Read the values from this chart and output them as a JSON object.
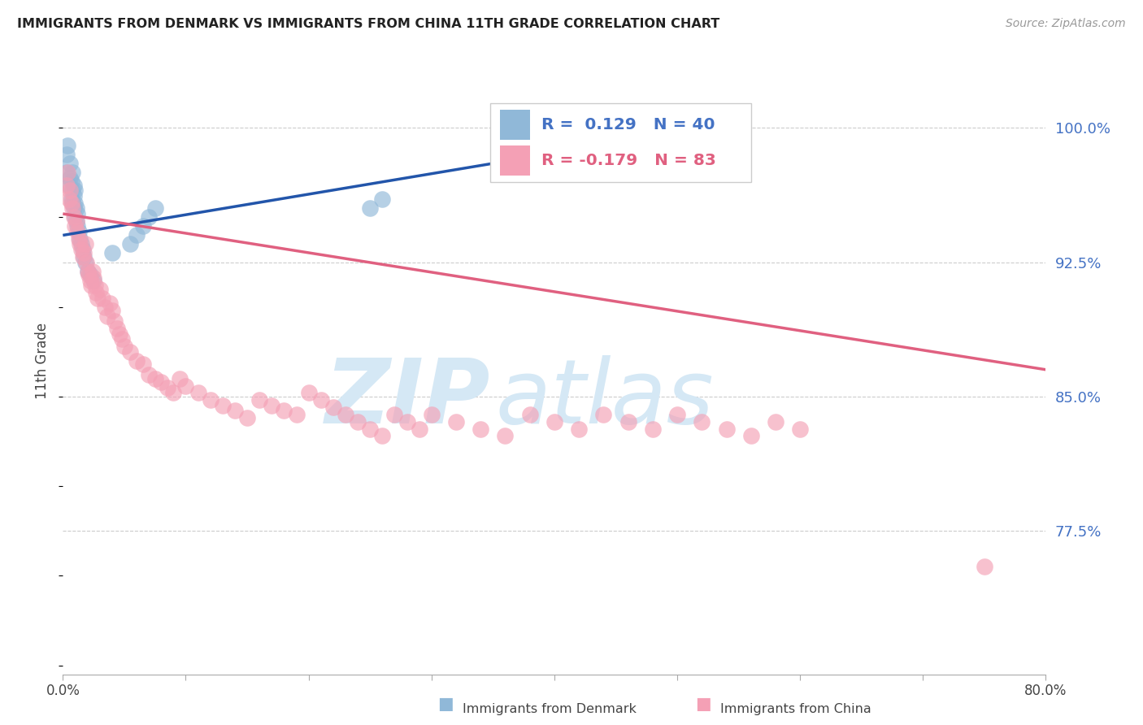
{
  "title": "IMMIGRANTS FROM DENMARK VS IMMIGRANTS FROM CHINA 11TH GRADE CORRELATION CHART",
  "source": "Source: ZipAtlas.com",
  "ylabel": "11th Grade",
  "ytick_labels": [
    "100.0%",
    "92.5%",
    "85.0%",
    "77.5%"
  ],
  "ytick_values": [
    1.0,
    0.925,
    0.85,
    0.775
  ],
  "xlim": [
    0.0,
    0.8
  ],
  "ylim": [
    0.695,
    1.045
  ],
  "legend_line1": "R =  0.129   N = 40",
  "legend_line2": "R = -0.179   N = 83",
  "denmark_color": "#90b8d8",
  "china_color": "#f4a0b5",
  "denmark_line_color": "#2255aa",
  "china_line_color": "#e06080",
  "watermark_zip": "ZIP",
  "watermark_atlas": "atlas",
  "watermark_color": "#d5e8f5",
  "denmark_line_x0": 0.0,
  "denmark_line_y0": 0.94,
  "denmark_line_x1": 0.55,
  "denmark_line_y1": 1.003,
  "china_line_x0": 0.0,
  "china_line_y0": 0.952,
  "china_line_x1": 0.8,
  "china_line_y1": 0.865,
  "denmark_points_x": [
    0.003,
    0.003,
    0.004,
    0.005,
    0.006,
    0.006,
    0.007,
    0.007,
    0.008,
    0.008,
    0.008,
    0.009,
    0.009,
    0.009,
    0.01,
    0.01,
    0.01,
    0.011,
    0.011,
    0.012,
    0.012,
    0.013,
    0.014,
    0.015,
    0.016,
    0.017,
    0.018,
    0.02,
    0.022,
    0.025,
    0.04,
    0.055,
    0.06,
    0.065,
    0.07,
    0.075,
    0.25,
    0.26,
    0.51,
    0.52
  ],
  "denmark_points_y": [
    0.975,
    0.985,
    0.99,
    0.968,
    0.972,
    0.98,
    0.96,
    0.97,
    0.958,
    0.965,
    0.975,
    0.955,
    0.962,
    0.968,
    0.95,
    0.958,
    0.965,
    0.948,
    0.955,
    0.945,
    0.952,
    0.942,
    0.938,
    0.935,
    0.932,
    0.928,
    0.925,
    0.92,
    0.918,
    0.915,
    0.93,
    0.935,
    0.94,
    0.945,
    0.95,
    0.955,
    0.955,
    0.96,
    1.0,
    1.0
  ],
  "china_points_x": [
    0.003,
    0.004,
    0.005,
    0.006,
    0.007,
    0.008,
    0.009,
    0.01,
    0.011,
    0.012,
    0.013,
    0.014,
    0.015,
    0.016,
    0.017,
    0.018,
    0.019,
    0.02,
    0.021,
    0.022,
    0.023,
    0.024,
    0.025,
    0.026,
    0.027,
    0.028,
    0.03,
    0.032,
    0.034,
    0.036,
    0.038,
    0.04,
    0.042,
    0.044,
    0.046,
    0.048,
    0.05,
    0.055,
    0.06,
    0.065,
    0.07,
    0.075,
    0.08,
    0.085,
    0.09,
    0.095,
    0.1,
    0.11,
    0.12,
    0.13,
    0.14,
    0.15,
    0.16,
    0.17,
    0.18,
    0.19,
    0.2,
    0.21,
    0.22,
    0.23,
    0.24,
    0.25,
    0.26,
    0.27,
    0.28,
    0.29,
    0.3,
    0.32,
    0.34,
    0.36,
    0.38,
    0.4,
    0.42,
    0.44,
    0.46,
    0.48,
    0.5,
    0.52,
    0.54,
    0.56,
    0.58,
    0.6,
    0.75
  ],
  "china_points_y": [
    0.968,
    0.975,
    0.96,
    0.965,
    0.958,
    0.955,
    0.95,
    0.945,
    0.948,
    0.942,
    0.938,
    0.935,
    0.932,
    0.928,
    0.93,
    0.935,
    0.925,
    0.92,
    0.918,
    0.915,
    0.912,
    0.92,
    0.916,
    0.912,
    0.908,
    0.905,
    0.91,
    0.905,
    0.9,
    0.895,
    0.902,
    0.898,
    0.892,
    0.888,
    0.885,
    0.882,
    0.878,
    0.875,
    0.87,
    0.868,
    0.862,
    0.86,
    0.858,
    0.855,
    0.852,
    0.86,
    0.856,
    0.852,
    0.848,
    0.845,
    0.842,
    0.838,
    0.848,
    0.845,
    0.842,
    0.84,
    0.852,
    0.848,
    0.844,
    0.84,
    0.836,
    0.832,
    0.828,
    0.84,
    0.836,
    0.832,
    0.84,
    0.836,
    0.832,
    0.828,
    0.84,
    0.836,
    0.832,
    0.84,
    0.836,
    0.832,
    0.84,
    0.836,
    0.832,
    0.828,
    0.836,
    0.832,
    0.755
  ]
}
